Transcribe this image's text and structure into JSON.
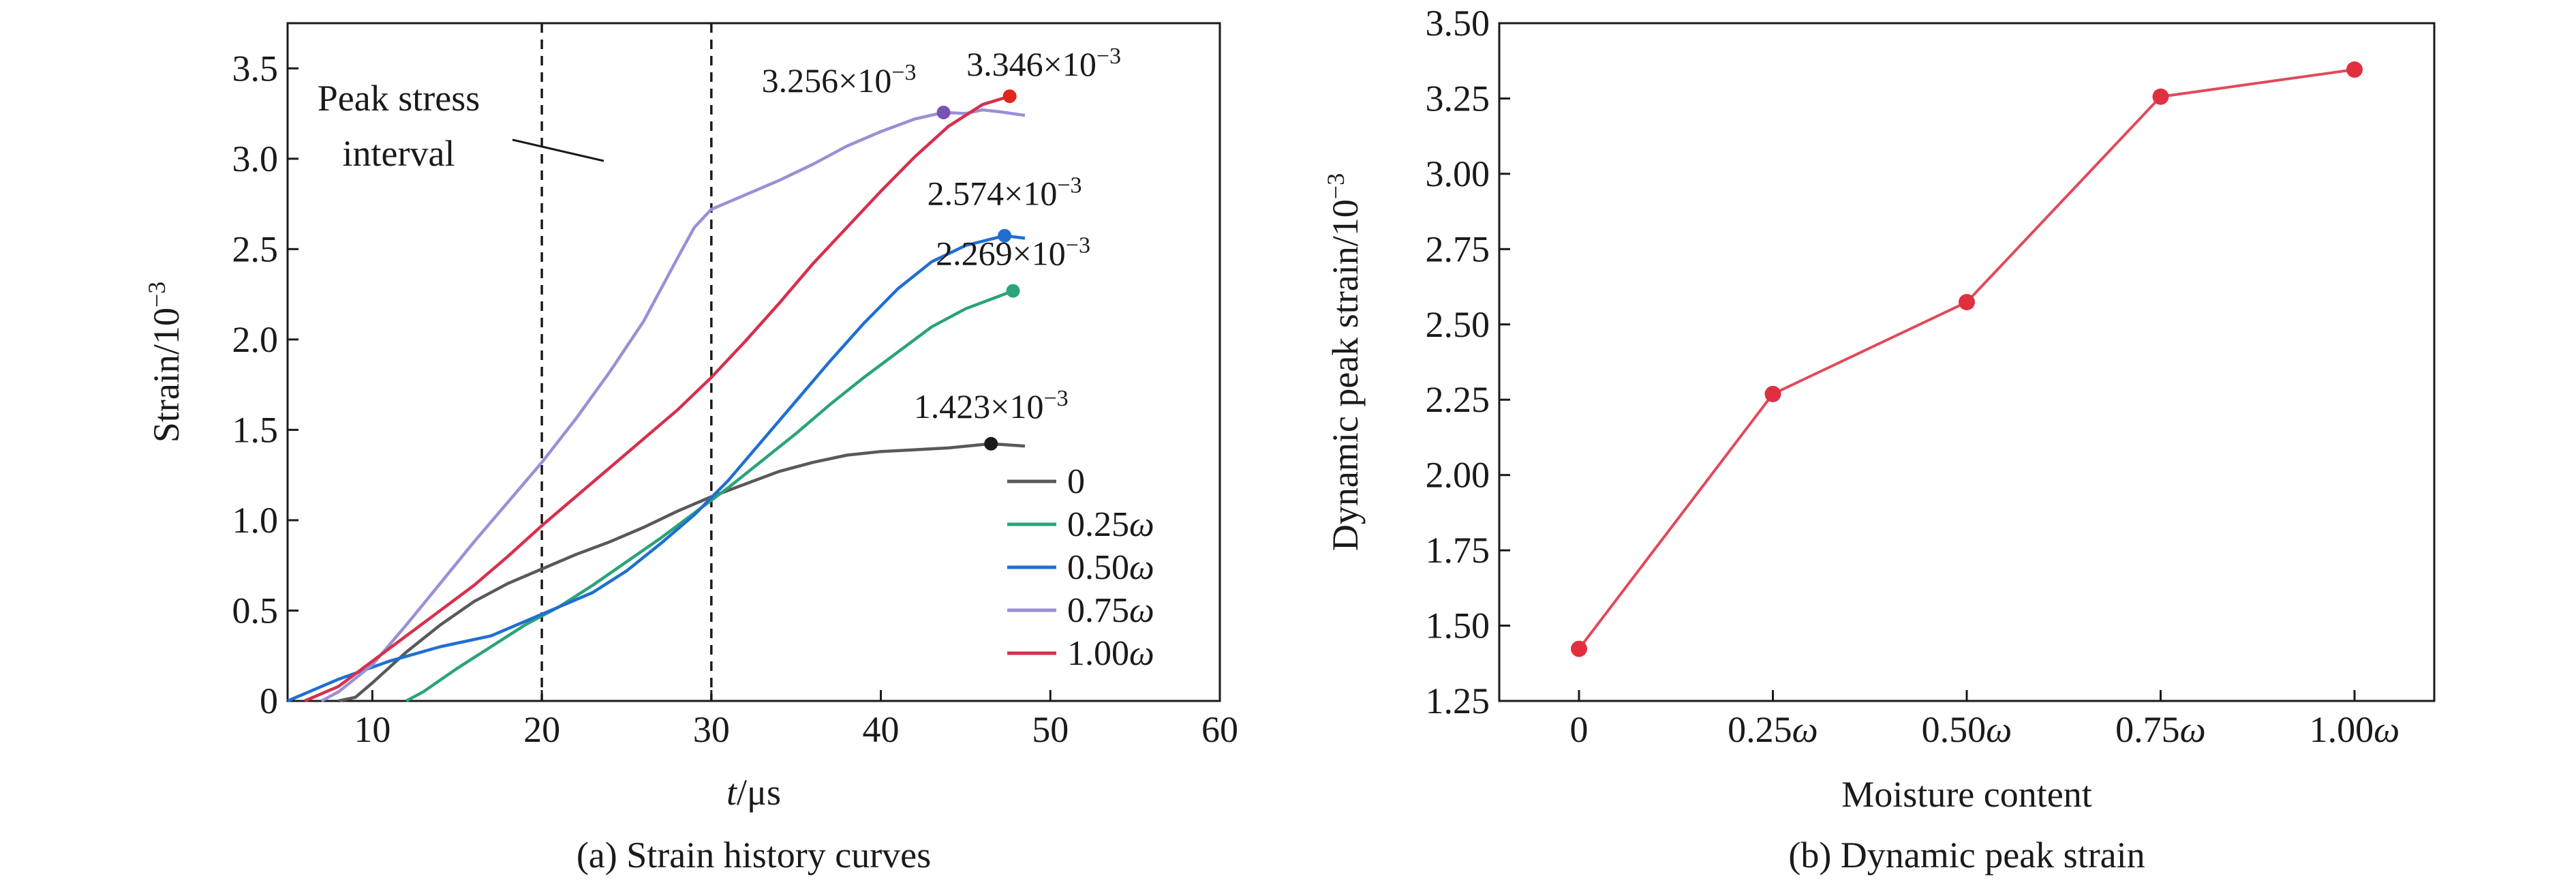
{
  "charts": [
    {
      "caption": "(a) Strain history curves",
      "chart_data": {
        "type": "line",
        "xlabel_italic": "t",
        "xlabel_rest": "/μs",
        "ylabel": "Strain/10",
        "ylabel_sup": "−3",
        "xlim": [
          5,
          60
        ],
        "ylim": [
          0,
          3.75
        ],
        "x_ticks": [
          10,
          20,
          30,
          40,
          50,
          60
        ],
        "x_tick_labels": [
          "10",
          "20",
          "30",
          "40",
          "50",
          "60"
        ],
        "y_ticks": [
          0,
          0.5,
          1.0,
          1.5,
          2.0,
          2.5,
          3.0,
          3.5
        ],
        "y_tick_labels": [
          "0",
          "0.5",
          "1.0",
          "1.5",
          "2.0",
          "2.5",
          "3.0",
          "3.5"
        ],
        "grid": false,
        "legend_position": "lower-right",
        "vlines": [
          20,
          30
        ],
        "interval_label": [
          "Peak stress",
          "interval"
        ],
        "series": [
          {
            "name": "0",
            "name_italic": "",
            "color": "#595959",
            "points": [
              [
                8,
                0
              ],
              [
                9,
                0.02
              ],
              [
                10,
                0.1
              ],
              [
                12,
                0.27
              ],
              [
                14,
                0.42
              ],
              [
                16,
                0.55
              ],
              [
                18,
                0.65
              ],
              [
                20,
                0.73
              ],
              [
                22,
                0.81
              ],
              [
                24,
                0.88
              ],
              [
                26,
                0.96
              ],
              [
                28,
                1.05
              ],
              [
                30,
                1.13
              ],
              [
                32,
                1.2
              ],
              [
                34,
                1.27
              ],
              [
                36,
                1.32
              ],
              [
                38,
                1.36
              ],
              [
                40,
                1.38
              ],
              [
                42,
                1.39
              ],
              [
                44,
                1.4
              ],
              [
                46.5,
                1.423
              ],
              [
                48.5,
                1.41
              ]
            ],
            "peak": [
              46.5,
              1.423
            ],
            "peak_label": "1.423×10",
            "peak_sup": "−3",
            "marker_color": "#1a1a1a"
          },
          {
            "name": "0.25",
            "name_italic": "ω",
            "color": "#2ca37a",
            "points": [
              [
                12,
                0
              ],
              [
                13,
                0.05
              ],
              [
                15,
                0.18
              ],
              [
                17,
                0.3
              ],
              [
                19,
                0.42
              ],
              [
                21,
                0.52
              ],
              [
                23,
                0.64
              ],
              [
                25,
                0.77
              ],
              [
                27,
                0.9
              ],
              [
                29,
                1.04
              ],
              [
                31,
                1.18
              ],
              [
                33,
                1.33
              ],
              [
                35,
                1.48
              ],
              [
                37,
                1.64
              ],
              [
                39,
                1.79
              ],
              [
                41,
                1.93
              ],
              [
                43,
                2.07
              ],
              [
                45,
                2.17
              ],
              [
                47.8,
                2.269
              ],
              [
                48,
                2.26
              ]
            ],
            "peak": [
              47.8,
              2.269
            ],
            "peak_label": "2.269×10",
            "peak_sup": "−3",
            "marker_color": "#2ca37a"
          },
          {
            "name": "0.50",
            "name_italic": "ω",
            "color": "#1f6fd1",
            "points": [
              [
                5,
                0
              ],
              [
                8,
                0.12
              ],
              [
                11,
                0.22
              ],
              [
                14,
                0.3
              ],
              [
                17,
                0.36
              ],
              [
                20,
                0.48
              ],
              [
                23,
                0.6
              ],
              [
                25,
                0.72
              ],
              [
                27,
                0.87
              ],
              [
                29,
                1.03
              ],
              [
                31,
                1.22
              ],
              [
                33,
                1.44
              ],
              [
                35,
                1.66
              ],
              [
                37,
                1.88
              ],
              [
                39,
                2.09
              ],
              [
                41,
                2.28
              ],
              [
                43,
                2.43
              ],
              [
                45,
                2.52
              ],
              [
                47.3,
                2.574
              ],
              [
                48.5,
                2.56
              ]
            ],
            "peak": [
              47.3,
              2.574
            ],
            "peak_label": "2.574×10",
            "peak_sup": "−3",
            "marker_color": "#1f6fd1"
          },
          {
            "name": "0.75",
            "name_italic": "ω",
            "color": "#9b8fd6",
            "points": [
              [
                7,
                0
              ],
              [
                8,
                0.05
              ],
              [
                10,
                0.2
              ],
              [
                12,
                0.42
              ],
              [
                14,
                0.65
              ],
              [
                16,
                0.88
              ],
              [
                18,
                1.1
              ],
              [
                20,
                1.32
              ],
              [
                22,
                1.56
              ],
              [
                24,
                1.82
              ],
              [
                26,
                2.1
              ],
              [
                28,
                2.45
              ],
              [
                29,
                2.62
              ],
              [
                30,
                2.72
              ],
              [
                31,
                2.76
              ],
              [
                32,
                2.8
              ],
              [
                34,
                2.88
              ],
              [
                36,
                2.97
              ],
              [
                38,
                3.07
              ],
              [
                40,
                3.15
              ],
              [
                42,
                3.22
              ],
              [
                43.7,
                3.256
              ],
              [
                45,
                3.25
              ],
              [
                46,
                3.27
              ],
              [
                47,
                3.26
              ],
              [
                48.5,
                3.24
              ]
            ],
            "peak": [
              43.7,
              3.256
            ],
            "peak_label": "3.256×10",
            "peak_sup": "−3",
            "marker_color": "#7a52b3"
          },
          {
            "name": "1.00",
            "name_italic": "ω",
            "color": "#d6304d",
            "points": [
              [
                6,
                0
              ],
              [
                8,
                0.08
              ],
              [
                10,
                0.22
              ],
              [
                12,
                0.36
              ],
              [
                14,
                0.5
              ],
              [
                16,
                0.64
              ],
              [
                18,
                0.8
              ],
              [
                20,
                0.97
              ],
              [
                22,
                1.13
              ],
              [
                24,
                1.29
              ],
              [
                26,
                1.45
              ],
              [
                28,
                1.61
              ],
              [
                30,
                1.79
              ],
              [
                32,
                1.99
              ],
              [
                34,
                2.2
              ],
              [
                36,
                2.42
              ],
              [
                38,
                2.62
              ],
              [
                40,
                2.82
              ],
              [
                42,
                3.01
              ],
              [
                44,
                3.18
              ],
              [
                46,
                3.3
              ],
              [
                47.6,
                3.346
              ],
              [
                48,
                3.34
              ]
            ],
            "peak": [
              47.6,
              3.346
            ],
            "peak_label": "3.346×10",
            "peak_sup": "−3",
            "marker_color": "#e0251f"
          }
        ]
      }
    },
    {
      "caption": "(b) Dynamic peak strain",
      "chart_data": {
        "type": "line",
        "xlabel": "Moisture content",
        "ylabel": "Dynamic peak strain/10",
        "ylabel_sup": "−3",
        "ylim": [
          1.25,
          3.5
        ],
        "y_ticks": [
          1.25,
          1.5,
          1.75,
          2.0,
          2.25,
          2.5,
          2.75,
          3.0,
          3.25,
          3.5
        ],
        "y_tick_labels": [
          "1.25",
          "1.50",
          "1.75",
          "2.00",
          "2.25",
          "2.50",
          "2.75",
          "3.00",
          "3.25",
          "3.50"
        ],
        "grid": false,
        "categories": [
          {
            "label": "0",
            "italic": ""
          },
          {
            "label": "0.25",
            "italic": "ω"
          },
          {
            "label": "0.50",
            "italic": "ω"
          },
          {
            "label": "0.75",
            "italic": "ω"
          },
          {
            "label": "1.00",
            "italic": "ω"
          }
        ],
        "values": [
          1.423,
          2.269,
          2.574,
          3.256,
          3.346
        ],
        "line_color": "#e04a5a",
        "marker_color": "#e0303f"
      }
    }
  ]
}
